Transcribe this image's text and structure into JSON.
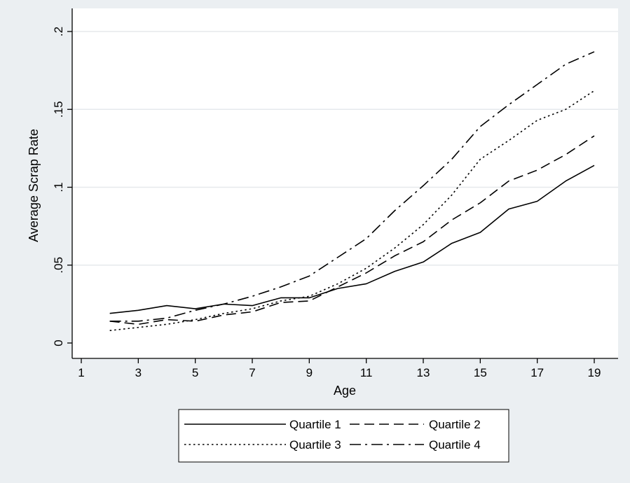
{
  "colors": {
    "outer_background": "#ebeff2",
    "plot_background": "#ffffff",
    "gridline": "#e6e9ec",
    "lines": "#000000"
  },
  "chart_data": {
    "type": "line",
    "title": "",
    "xlabel": "Age",
    "ylabel": "Average Scrap Rate",
    "xlim": [
      1,
      19.5
    ],
    "ylim": [
      0,
      0.2
    ],
    "xticks": [
      1,
      3,
      5,
      7,
      9,
      11,
      13,
      15,
      17,
      19
    ],
    "xtick_labels": [
      "1",
      "3",
      "5",
      "7",
      "9",
      "11",
      "13",
      "15",
      "17",
      "19"
    ],
    "yticks": [
      0,
      0.05,
      0.1,
      0.15,
      0.2
    ],
    "ytick_labels": [
      "0",
      ".05",
      ".1",
      ".15",
      ".2"
    ],
    "grid": true,
    "legend_placement": "bottom",
    "x": [
      2,
      3,
      4,
      5,
      6,
      7,
      8,
      9,
      10,
      11,
      12,
      13,
      14,
      15,
      16,
      17,
      18,
      19
    ],
    "series": [
      {
        "name": "Quartile 1",
        "dash": "solid",
        "values": [
          0.019,
          0.021,
          0.024,
          0.022,
          0.025,
          0.024,
          0.029,
          0.029,
          0.035,
          0.038,
          0.046,
          0.052,
          0.064,
          0.071,
          0.086,
          0.091,
          0.104,
          0.114
        ]
      },
      {
        "name": "Quartile 2",
        "dash": "dashed",
        "values": [
          0.014,
          0.012,
          0.015,
          0.014,
          0.018,
          0.02,
          0.026,
          0.027,
          0.036,
          0.045,
          0.056,
          0.065,
          0.079,
          0.09,
          0.104,
          0.111,
          0.121,
          0.133
        ]
      },
      {
        "name": "Quartile 3",
        "dash": "dotted",
        "values": [
          0.008,
          0.01,
          0.012,
          0.015,
          0.019,
          0.022,
          0.027,
          0.03,
          0.038,
          0.048,
          0.061,
          0.076,
          0.095,
          0.118,
          0.13,
          0.143,
          0.15,
          0.162
        ]
      },
      {
        "name": "Quartile 4",
        "dash": "dashdot",
        "values": [
          0.014,
          0.014,
          0.016,
          0.021,
          0.025,
          0.03,
          0.036,
          0.043,
          0.055,
          0.067,
          0.085,
          0.101,
          0.118,
          0.139,
          0.153,
          0.166,
          0.179,
          0.187
        ]
      }
    ]
  }
}
